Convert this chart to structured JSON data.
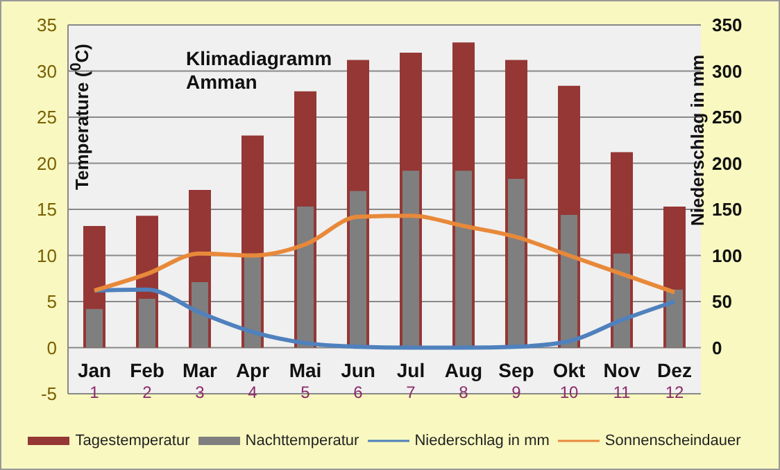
{
  "chart_data": {
    "type": "bar",
    "title": "Klimadiagramm\nAmman",
    "ylabel": "Temperature ($^{0}$C)",
    "y2label": "Niederschlag in mm",
    "categories": [
      "Jan\n1",
      "Feb\n2",
      "Mar\n3",
      "Apr\n4",
      "Mai\n5",
      "Jun\n6",
      "Jul\n7",
      "Aug\n8",
      "Sep\n9",
      "Okt\n10",
      "Nov\n11",
      "Dez\n12"
    ],
    "series": [
      {
        "name": "Tagestemperatur",
        "type": "bar",
        "color": "#953735",
        "values": [
          13.2,
          14.3,
          17.1,
          23,
          27.8,
          31.2,
          32,
          33.1,
          31.2,
          28.4,
          21.2,
          15.3
        ]
      },
      {
        "name": "Nachttemperatur",
        "type": "bar",
        "color": "#7f7f7f",
        "values": [
          4.2,
          5.3,
          7.1,
          10,
          15.3,
          17,
          19.2,
          19.2,
          18.3,
          14.4,
          10.2,
          6.3
        ]
      },
      {
        "name": "Niederschlag in mm",
        "type": "line",
        "axis": "y2",
        "color": "#4f81bd",
        "values": [
          62,
          63,
          38,
          17,
          5,
          1,
          0,
          0,
          1,
          7,
          30,
          50
        ]
      },
      {
        "name": "Sonnenscheindauer",
        "type": "line",
        "axis": "y2",
        "color": "#e8893a",
        "values": [
          62,
          80,
          102,
          100,
          112,
          142,
          143,
          132,
          120,
          100,
          80,
          60
        ]
      }
    ],
    "ylim": [
      -5,
      35
    ],
    "yticks": [
      -5,
      0,
      5,
      10,
      15,
      20,
      25,
      30,
      35
    ],
    "y2lim": [
      -50,
      350
    ],
    "y2ticks": [
      0,
      50,
      100,
      150,
      200,
      250,
      300,
      350
    ],
    "grid": "y",
    "legend": "bottom",
    "marker": "none",
    "line_style": "solid"
  }
}
